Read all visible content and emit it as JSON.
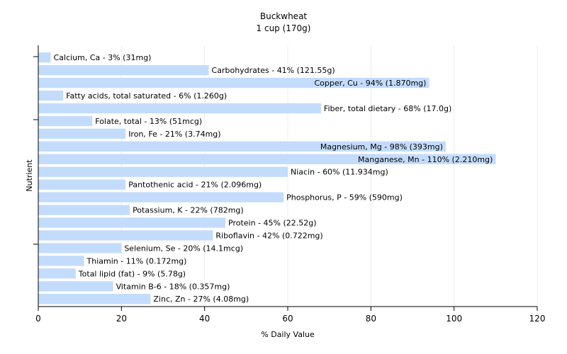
{
  "chart_data": {
    "type": "bar",
    "orientation": "horizontal",
    "title": "Buckwheat",
    "subtitle": "1 cup (170g)",
    "xlabel": "% Daily Value",
    "ylabel": "Nutrient",
    "xlim": [
      0,
      120
    ],
    "xticks": [
      0,
      20,
      40,
      60,
      80,
      100,
      120
    ],
    "grid": true,
    "bar_color": "#c4dcfc",
    "categories": [
      "Calcium, Ca",
      "Carbohydrates",
      "Copper, Cu",
      "Fatty acids, total saturated",
      "Fiber, total dietary",
      "Folate, total",
      "Iron, Fe",
      "Magnesium, Mg",
      "Manganese, Mn",
      "Niacin",
      "Pantothenic acid",
      "Phosphorus, P",
      "Potassium, K",
      "Protein",
      "Riboflavin",
      "Selenium, Se",
      "Thiamin",
      "Total lipid (fat)",
      "Vitamin B-6",
      "Zinc, Zn"
    ],
    "values": [
      3,
      41,
      94,
      6,
      68,
      13,
      21,
      98,
      110,
      60,
      21,
      59,
      22,
      45,
      42,
      20,
      11,
      9,
      18,
      27
    ],
    "labels": [
      "Calcium, Ca - 3% (31mg)",
      "Carbohydrates - 41% (121.55g)",
      "Copper, Cu - 94% (1.870mg)",
      "Fatty acids, total saturated - 6% (1.260g)",
      "Fiber, total dietary - 68% (17.0g)",
      "Folate, total - 13% (51mcg)",
      "Iron, Fe - 21% (3.74mg)",
      "Magnesium, Mg - 98% (393mg)",
      "Manganese, Mn - 110% (2.210mg)",
      "Niacin - 60% (11.934mg)",
      "Pantothenic acid - 21% (2.096mg)",
      "Phosphorus, P - 59% (590mg)",
      "Potassium, K - 22% (782mg)",
      "Protein - 45% (22.52g)",
      "Riboflavin - 42% (0.722mg)",
      "Selenium, Se - 20% (14.1mcg)",
      "Thiamin - 11% (0.172mg)",
      "Total lipid (fat) - 9% (5.78g)",
      "Vitamin B-6 - 18% (0.357mg)",
      "Zinc, Zn - 27% (4.08mg)"
    ]
  }
}
